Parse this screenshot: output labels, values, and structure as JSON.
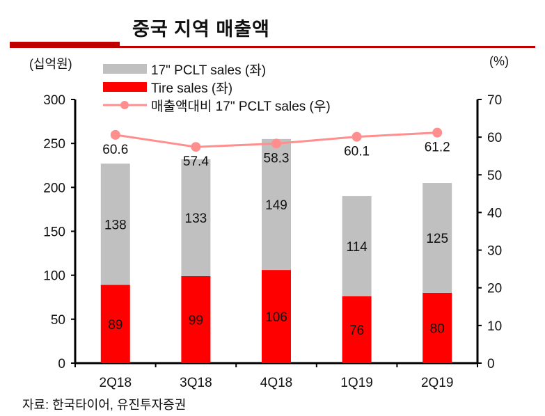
{
  "header": {
    "title": "중국 지역 매출액"
  },
  "source": "자료: 한국타이어, 유진투자증권",
  "chart_data": {
    "type": "bar",
    "title": "중국 지역 매출액",
    "categories": [
      "2Q18",
      "3Q18",
      "4Q18",
      "1Q19",
      "2Q19"
    ],
    "ylabel": "(십억원)",
    "y2label": "(%)",
    "ylim": [
      0,
      300
    ],
    "y2lim": [
      0,
      70
    ],
    "yticks": [
      0,
      50,
      100,
      150,
      200,
      250,
      300
    ],
    "y2ticks": [
      0,
      10,
      20,
      30,
      40,
      50,
      60,
      70
    ],
    "legend_position": "top-left",
    "series": [
      {
        "name": "Tire sales (좌)",
        "kind": "bar",
        "axis": "left",
        "color": "#ff0000",
        "values": [
          89,
          99,
          106,
          76,
          80
        ]
      },
      {
        "name": "17\" PCLT sales (좌)",
        "kind": "bar",
        "axis": "left",
        "color": "#c0c0c0",
        "values": [
          138,
          133,
          149,
          114,
          125
        ]
      },
      {
        "name": "매출액대비 17\" PCLT sales (우)",
        "kind": "line",
        "axis": "right",
        "color": "#ff8f8f",
        "values": [
          60.6,
          57.4,
          58.3,
          60.1,
          61.2
        ]
      }
    ]
  }
}
